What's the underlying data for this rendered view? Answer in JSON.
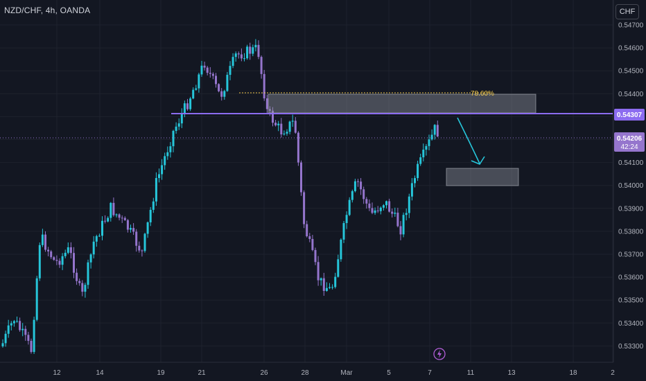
{
  "header": {
    "symbol": "NZD/CHF, 4h, OANDA",
    "currency_button": "CHF"
  },
  "price_axis": {
    "labels": [
      "0.54700",
      "0.54600",
      "0.54500",
      "0.54400",
      "0.54300",
      "0.54200",
      "0.54100",
      "0.54000",
      "0.53900",
      "0.53800",
      "0.53700",
      "0.53600",
      "0.53500",
      "0.53400",
      "0.53300"
    ],
    "line_price": "0.54307",
    "current_price": "0.54206",
    "countdown": "42:24"
  },
  "time_axis": {
    "labels": [
      "12",
      "14",
      "19",
      "21",
      "26",
      "28",
      "Mar",
      "5",
      "7",
      "11",
      "13",
      "18",
      "2"
    ]
  },
  "drawings": {
    "fib_label": "78.60%"
  },
  "colors": {
    "background": "#131722",
    "bull": "#26c6da",
    "bear": "#9575cd",
    "line": "#8c6cf0",
    "fib": "#f2c94c",
    "arrow": "#26c6da"
  },
  "icons": {
    "alert": "lightning-icon"
  }
}
